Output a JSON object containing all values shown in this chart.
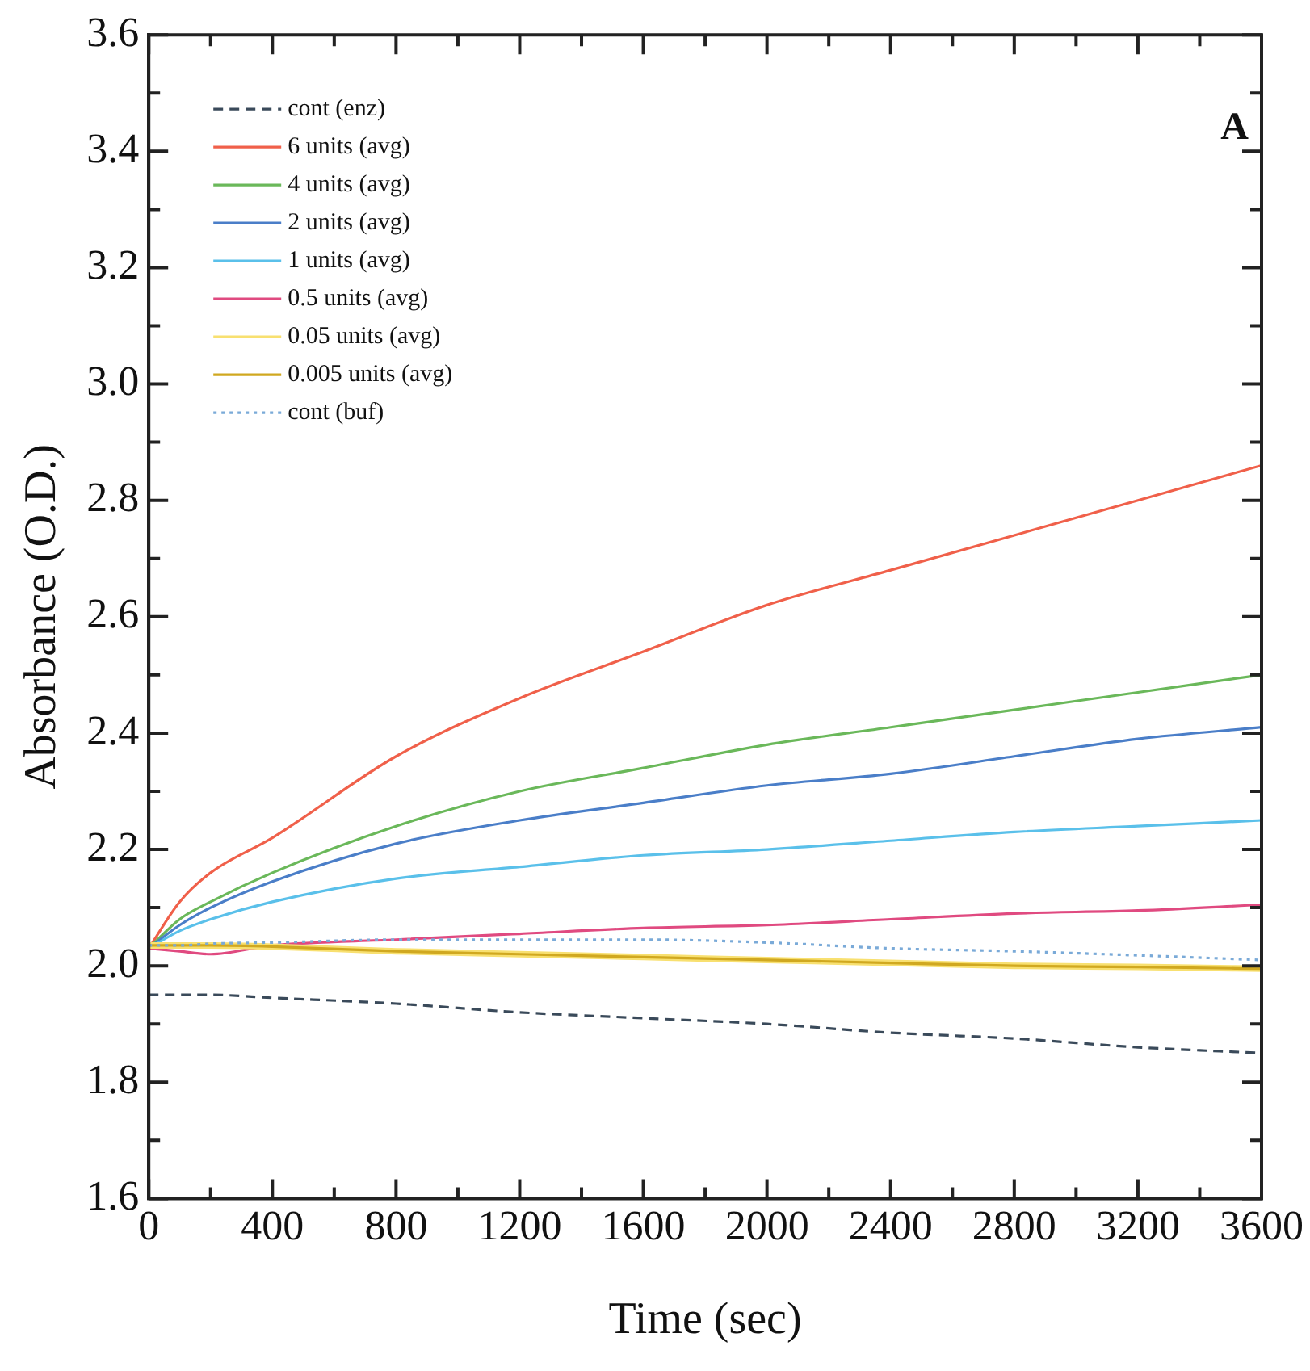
{
  "chart_data": {
    "type": "line",
    "xlabel": "Time (sec)",
    "ylabel": "Absorbance (O.D.)",
    "annotations": [
      "A"
    ],
    "xlim": [
      0,
      3600
    ],
    "ylim": [
      1.6,
      3.6
    ],
    "xticks": [
      0,
      {
        "value": 200,
        "label": null
      },
      400,
      {
        "value": 600,
        "label": null
      },
      800,
      {
        "value": 1000,
        "label": null
      },
      1200,
      {
        "value": 1400,
        "label": null
      },
      1600,
      {
        "value": 1800,
        "label": null
      },
      2000,
      {
        "value": 2200,
        "label": null
      },
      2400,
      {
        "value": 2600,
        "label": null
      },
      2800,
      {
        "value": 3000,
        "label": null
      },
      3200,
      {
        "value": 3400,
        "label": null
      },
      3600
    ],
    "yticks": [
      1.6,
      {
        "value": 1.7,
        "label": null
      },
      1.8,
      {
        "value": 1.9,
        "label": null
      },
      {
        "value": 2.0,
        "label": "2.0"
      },
      {
        "value": 2.1,
        "label": null
      },
      2.2,
      {
        "value": 2.3,
        "label": null
      },
      2.4,
      {
        "value": 2.5,
        "label": null
      },
      2.6,
      {
        "value": 2.7,
        "label": null
      },
      2.8,
      {
        "value": 2.9,
        "label": null
      },
      {
        "value": 3.0,
        "label": "3.0"
      },
      {
        "value": 3.1,
        "label": null
      },
      3.2,
      {
        "value": 3.3,
        "label": null
      },
      3.4,
      {
        "value": 3.5,
        "label": null
      },
      3.6
    ],
    "x": [
      0,
      100,
      200,
      400,
      800,
      1200,
      1600,
      2000,
      2400,
      2800,
      3200,
      3600
    ],
    "grid": false,
    "legend": "top left",
    "marker": "none",
    "series": [
      {
        "name": "cont (enz)",
        "color": "#3a4a5a",
        "line_style": "dashed",
        "values": [
          1.95,
          1.95,
          1.95,
          1.945,
          1.935,
          1.92,
          1.91,
          1.9,
          1.885,
          1.875,
          1.86,
          1.85
        ]
      },
      {
        "name": "6 units (avg)",
        "color": "#f0604a",
        "values": [
          2.03,
          2.11,
          2.16,
          2.22,
          2.36,
          2.46,
          2.54,
          2.62,
          2.68,
          2.74,
          2.8,
          2.86
        ]
      },
      {
        "name": "4 units (avg)",
        "color": "#6ab85a",
        "values": [
          2.03,
          2.08,
          2.11,
          2.16,
          2.24,
          2.3,
          2.34,
          2.38,
          2.41,
          2.44,
          2.47,
          2.5
        ]
      },
      {
        "name": "2 units (avg)",
        "color": "#4a7ec8",
        "values": [
          2.03,
          2.07,
          2.1,
          2.145,
          2.21,
          2.25,
          2.28,
          2.31,
          2.33,
          2.36,
          2.39,
          2.41
        ]
      },
      {
        "name": "1 units (avg)",
        "color": "#5ac0ea",
        "values": [
          2.03,
          2.06,
          2.08,
          2.11,
          2.15,
          2.17,
          2.19,
          2.2,
          2.215,
          2.23,
          2.24,
          2.25
        ]
      },
      {
        "name": "0.5 units (avg)",
        "color": "#e04a80",
        "values": [
          2.03,
          2.025,
          2.02,
          2.035,
          2.045,
          2.055,
          2.065,
          2.07,
          2.08,
          2.09,
          2.095,
          2.105
        ]
      },
      {
        "name": "0.05 units (avg)",
        "color": "#f8e070",
        "values": [
          2.035,
          2.035,
          2.035,
          2.033,
          2.025,
          2.02,
          2.015,
          2.01,
          2.005,
          2.0,
          1.998,
          1.995
        ]
      },
      {
        "name": "0.005 units (avg)",
        "color": "#d0a820",
        "values": [
          2.035,
          2.035,
          2.035,
          2.033,
          2.025,
          2.02,
          2.015,
          2.01,
          2.005,
          2.0,
          1.998,
          1.995
        ]
      },
      {
        "name": "cont (buf)",
        "color": "#7aaad8",
        "line_style": "dotted",
        "values": [
          2.035,
          2.035,
          2.038,
          2.04,
          2.045,
          2.045,
          2.045,
          2.04,
          2.03,
          2.025,
          2.018,
          2.01
        ]
      }
    ]
  }
}
